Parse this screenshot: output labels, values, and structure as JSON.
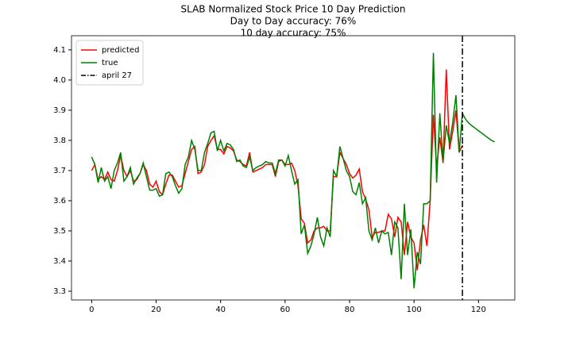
{
  "chart_data": {
    "type": "line",
    "title": "SLAB Normalized Stock Price 10 Day Prediction",
    "subtitles": [
      "Day to Day accuracy: 76%",
      "10 day accuracy: 75%"
    ],
    "series": [
      {
        "name": "predicted",
        "color": "#ff0000",
        "x": [
          0,
          1,
          2,
          3,
          4,
          5,
          6,
          7,
          8,
          9,
          10,
          11,
          12,
          13,
          14,
          15,
          16,
          17,
          18,
          19,
          20,
          21,
          22,
          23,
          24,
          25,
          26,
          27,
          28,
          29,
          30,
          31,
          32,
          33,
          34,
          35,
          36,
          37,
          38,
          39,
          40,
          41,
          42,
          43,
          44,
          45,
          46,
          47,
          48,
          49,
          50,
          51,
          52,
          53,
          54,
          55,
          56,
          57,
          58,
          59,
          60,
          61,
          62,
          63,
          64,
          65,
          66,
          67,
          68,
          69,
          70,
          71,
          72,
          73,
          74,
          75,
          76,
          77,
          78,
          79,
          80,
          81,
          82,
          83,
          84,
          85,
          86,
          87,
          88,
          89,
          90,
          91,
          92,
          93,
          94,
          95,
          96,
          97,
          98,
          99,
          100,
          101,
          102,
          103,
          104,
          105,
          106,
          107,
          108,
          109,
          110,
          111,
          112,
          113,
          114,
          115
        ],
        "values": [
          3.7,
          3.72,
          3.67,
          3.68,
          3.67,
          3.695,
          3.67,
          3.665,
          3.7,
          3.75,
          3.7,
          3.68,
          3.7,
          3.665,
          3.67,
          3.69,
          3.72,
          3.7,
          3.655,
          3.645,
          3.665,
          3.63,
          3.62,
          3.655,
          3.685,
          3.685,
          3.665,
          3.645,
          3.65,
          3.69,
          3.73,
          3.77,
          3.78,
          3.69,
          3.695,
          3.72,
          3.78,
          3.8,
          3.815,
          3.77,
          3.77,
          3.755,
          3.78,
          3.775,
          3.765,
          3.735,
          3.73,
          3.72,
          3.715,
          3.76,
          3.695,
          3.7,
          3.705,
          3.71,
          3.72,
          3.72,
          3.72,
          3.68,
          3.73,
          3.735,
          3.72,
          3.72,
          3.725,
          3.7,
          3.65,
          3.54,
          3.525,
          3.46,
          3.47,
          3.5,
          3.51,
          3.51,
          3.515,
          3.5,
          3.5,
          3.68,
          3.68,
          3.76,
          3.74,
          3.72,
          3.69,
          3.675,
          3.685,
          3.705,
          3.63,
          3.605,
          3.57,
          3.48,
          3.495,
          3.495,
          3.5,
          3.5,
          3.555,
          3.54,
          3.48,
          3.545,
          3.53,
          3.42,
          3.53,
          3.48,
          3.46,
          3.37,
          3.47,
          3.52,
          3.45,
          3.6,
          3.885,
          3.71,
          3.81,
          3.725,
          4.035,
          3.77,
          3.83,
          3.9,
          3.76,
          3.785
        ]
      },
      {
        "name": "true",
        "color": "#008000",
        "x": [
          0,
          1,
          2,
          3,
          4,
          5,
          6,
          7,
          8,
          9,
          10,
          11,
          12,
          13,
          14,
          15,
          16,
          17,
          18,
          19,
          20,
          21,
          22,
          23,
          24,
          25,
          26,
          27,
          28,
          29,
          30,
          31,
          32,
          33,
          34,
          35,
          36,
          37,
          38,
          39,
          40,
          41,
          42,
          43,
          44,
          45,
          46,
          47,
          48,
          49,
          50,
          51,
          52,
          53,
          54,
          55,
          56,
          57,
          58,
          59,
          60,
          61,
          62,
          63,
          64,
          65,
          66,
          67,
          68,
          69,
          70,
          71,
          72,
          73,
          74,
          75,
          76,
          77,
          78,
          79,
          80,
          81,
          82,
          83,
          84,
          85,
          86,
          87,
          88,
          89,
          90,
          91,
          92,
          93,
          94,
          95,
          96,
          97,
          98,
          99,
          100,
          101,
          102,
          103,
          104,
          105,
          106,
          107,
          108,
          109,
          110,
          111,
          112,
          113,
          114,
          115,
          116,
          117,
          118,
          119,
          120,
          121,
          122,
          123,
          124,
          125
        ],
        "values": [
          3.745,
          3.72,
          3.66,
          3.71,
          3.665,
          3.68,
          3.64,
          3.7,
          3.725,
          3.76,
          3.665,
          3.68,
          3.71,
          3.655,
          3.675,
          3.69,
          3.725,
          3.68,
          3.635,
          3.635,
          3.64,
          3.615,
          3.62,
          3.69,
          3.695,
          3.68,
          3.65,
          3.625,
          3.64,
          3.72,
          3.745,
          3.8,
          3.77,
          3.7,
          3.7,
          3.76,
          3.79,
          3.825,
          3.83,
          3.765,
          3.8,
          3.765,
          3.79,
          3.785,
          3.77,
          3.73,
          3.735,
          3.715,
          3.71,
          3.745,
          3.7,
          3.71,
          3.715,
          3.72,
          3.73,
          3.725,
          3.725,
          3.69,
          3.735,
          3.735,
          3.715,
          3.75,
          3.7,
          3.655,
          3.67,
          3.49,
          3.52,
          3.425,
          3.45,
          3.49,
          3.545,
          3.48,
          3.45,
          3.51,
          3.48,
          3.7,
          3.68,
          3.78,
          3.74,
          3.7,
          3.68,
          3.63,
          3.62,
          3.66,
          3.59,
          3.61,
          3.5,
          3.47,
          3.51,
          3.46,
          3.5,
          3.49,
          3.495,
          3.42,
          3.53,
          3.51,
          3.34,
          3.59,
          3.42,
          3.505,
          3.31,
          3.43,
          3.39,
          3.59,
          3.59,
          3.6,
          4.09,
          3.66,
          3.89,
          3.73,
          3.85,
          3.79,
          3.86,
          3.95,
          3.76,
          3.89,
          3.87,
          3.857,
          3.848,
          3.84,
          3.832,
          3.824,
          3.816,
          3.808,
          3.8,
          3.795
        ]
      }
    ],
    "vline": {
      "label": "april 27",
      "x": 115,
      "color": "#000000"
    },
    "legend": "upper left",
    "xlim": [
      -6.25,
      131.25
    ],
    "xticks": [
      0,
      20,
      40,
      60,
      80,
      100,
      120
    ],
    "ylim": [
      3.271,
      4.147
    ],
    "yticks": [
      3.3,
      3.4,
      3.5,
      3.6,
      3.7,
      3.8,
      3.9,
      {
        "value": 4.0,
        "label": "4.0"
      },
      4.1
    ]
  }
}
